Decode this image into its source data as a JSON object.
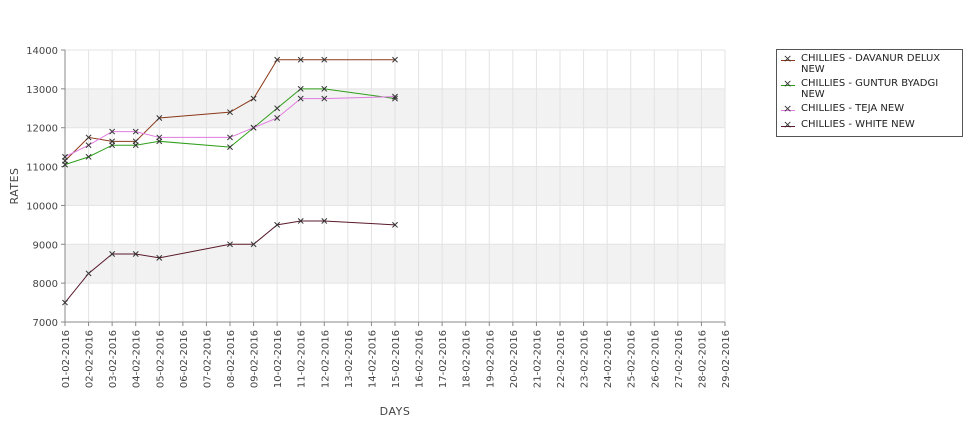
{
  "chart_data": {
    "type": "line",
    "xlabel": "DAYS",
    "ylabel": "RATES",
    "ylim": [
      7000,
      14000
    ],
    "yticks": [
      7000,
      8000,
      9000,
      10000,
      11000,
      12000,
      13000,
      14000
    ],
    "grid": true,
    "legend_position": "right",
    "categories": [
      "01-02-2016",
      "02-02-2016",
      "03-02-2016",
      "04-02-2016",
      "05-02-2016",
      "06-02-2016",
      "07-02-2016",
      "08-02-2016",
      "09-02-2016",
      "10-02-2016",
      "11-02-2016",
      "12-02-2016",
      "13-02-2016",
      "14-02-2016",
      "15-02-2016",
      "16-02-2016",
      "17-02-2016",
      "18-02-2016",
      "19-02-2016",
      "20-02-2016",
      "21-02-2016",
      "22-02-2016",
      "23-02-2016",
      "24-02-2016",
      "25-02-2016",
      "26-02-2016",
      "27-02-2016",
      "28-02-2016",
      "29-02-2016"
    ],
    "series": [
      {
        "name": "CHILLIES - DAVANUR DELUX NEW",
        "legend_lines": [
          "CHILLIES - DAVANUR DELUX",
          "NEW"
        ],
        "color": "#8b3a1a",
        "points": [
          {
            "x": "01-02-2016",
            "y": 11150
          },
          {
            "x": "02-02-2016",
            "y": 11750
          },
          {
            "x": "03-02-2016",
            "y": 11650
          },
          {
            "x": "04-02-2016",
            "y": 11650
          },
          {
            "x": "05-02-2016",
            "y": 12250
          },
          {
            "x": "08-02-2016",
            "y": 12400
          },
          {
            "x": "09-02-2016",
            "y": 12750
          },
          {
            "x": "10-02-2016",
            "y": 13750
          },
          {
            "x": "11-02-2016",
            "y": 13750
          },
          {
            "x": "12-02-2016",
            "y": 13750
          },
          {
            "x": "15-02-2016",
            "y": 13750
          }
        ]
      },
      {
        "name": "CHILLIES - GUNTUR BYADGI NEW",
        "legend_lines": [
          "CHILLIES - GUNTUR BYADGI",
          "NEW"
        ],
        "color": "#2e9e1a",
        "points": [
          {
            "x": "01-02-2016",
            "y": 11050
          },
          {
            "x": "02-02-2016",
            "y": 11250
          },
          {
            "x": "03-02-2016",
            "y": 11550
          },
          {
            "x": "04-02-2016",
            "y": 11550
          },
          {
            "x": "05-02-2016",
            "y": 11650
          },
          {
            "x": "08-02-2016",
            "y": 11500
          },
          {
            "x": "09-02-2016",
            "y": 12000
          },
          {
            "x": "10-02-2016",
            "y": 12500
          },
          {
            "x": "11-02-2016",
            "y": 13000
          },
          {
            "x": "12-02-2016",
            "y": 13000
          },
          {
            "x": "15-02-2016",
            "y": 12750
          }
        ]
      },
      {
        "name": "CHILLIES - TEJA NEW",
        "legend_lines": [
          "CHILLIES - TEJA NEW"
        ],
        "color": "#e07be0",
        "points": [
          {
            "x": "01-02-2016",
            "y": 11250
          },
          {
            "x": "02-02-2016",
            "y": 11550
          },
          {
            "x": "03-02-2016",
            "y": 11900
          },
          {
            "x": "04-02-2016",
            "y": 11900
          },
          {
            "x": "05-02-2016",
            "y": 11750
          },
          {
            "x": "08-02-2016",
            "y": 11750
          },
          {
            "x": "09-02-2016",
            "y": 12000
          },
          {
            "x": "10-02-2016",
            "y": 12250
          },
          {
            "x": "11-02-2016",
            "y": 12750
          },
          {
            "x": "12-02-2016",
            "y": 12750
          },
          {
            "x": "15-02-2016",
            "y": 12800
          }
        ]
      },
      {
        "name": "CHILLIES - WHITE NEW",
        "legend_lines": [
          "CHILLIES - WHITE NEW"
        ],
        "color": "#5a1a2a",
        "points": [
          {
            "x": "01-02-2016",
            "y": 7500
          },
          {
            "x": "02-02-2016",
            "y": 8250
          },
          {
            "x": "03-02-2016",
            "y": 8750
          },
          {
            "x": "04-02-2016",
            "y": 8750
          },
          {
            "x": "05-02-2016",
            "y": 8650
          },
          {
            "x": "08-02-2016",
            "y": 9000
          },
          {
            "x": "09-02-2016",
            "y": 9000
          },
          {
            "x": "10-02-2016",
            "y": 9500
          },
          {
            "x": "11-02-2016",
            "y": 9600
          },
          {
            "x": "12-02-2016",
            "y": 9600
          },
          {
            "x": "15-02-2016",
            "y": 9500
          }
        ]
      }
    ]
  }
}
